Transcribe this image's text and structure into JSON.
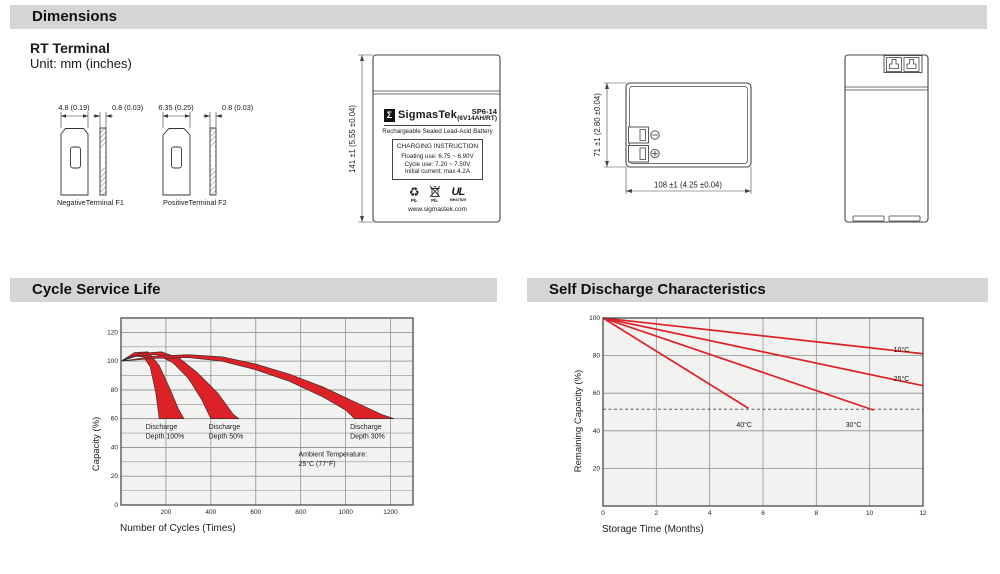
{
  "sections": {
    "dimensions": "Dimensions",
    "cycle_service_life": "Cycle Service Life",
    "self_discharge": "Self Discharge Characteristics"
  },
  "dimensions": {
    "subtitle": "RT Terminal",
    "unit": "Unit: mm (inches)",
    "terminal_f1": {
      "width_dim": "4.8 (0.19)",
      "thickness_dim": "0.8 (0.03)",
      "label": "NegativeTerminal F1"
    },
    "terminal_f2": {
      "width_dim": "6.35 (0.25)",
      "thickness_dim": "0.8 (0.03)",
      "label": "PositiveTerminal F2"
    },
    "front_view": {
      "height_dim": "141 ±1 (5.55 ±0.04)"
    },
    "top_view": {
      "height_dim": "71 ±1 (2.80 ±0.04)",
      "width_dim": "108 ±1 (4.25 ±0.04)"
    },
    "label": {
      "logo_glyph": "Σ",
      "brand": "SigmasTek",
      "model": "SP6-14",
      "model_spec": "(6V14AH/RT)",
      "battery_type": "Rechargeable Sealed Lead-Acid Battery",
      "charging_title": "CHARGING INSTRUCTION",
      "charging_lines": [
        "Floating use: 6.75 ~ 6.90V",
        "Cycle use: 7.20 ~ 7.50V",
        "Initial current: max 4.2A"
      ],
      "recycle_glyph": "♻",
      "pb_recycle": "Pb.",
      "pb_trash": "Pb.",
      "ul_mark": "UL",
      "ul_code": "MH47929",
      "website": "www.sigmastek.com"
    }
  },
  "colors": {
    "accent_red": "#dc2127",
    "band_outline": "#2a2a2a",
    "plot_bg": "#f2f2f0",
    "grid": "#909090",
    "plot_border": "#4a4a4a",
    "text": "#1a1a1a",
    "section_bar": "#d4d5d6"
  },
  "chart_data": [
    {
      "type": "area",
      "name": "cycle_service_life",
      "title": "",
      "xlabel": "Number of Cycles (Times)",
      "ylabel": "Capacity (%)",
      "xlim": [
        0,
        1300
      ],
      "ylim": [
        0,
        130
      ],
      "xticks": [
        200,
        400,
        600,
        800,
        1000,
        1200
      ],
      "yticks": [
        0,
        20,
        40,
        60,
        80,
        100,
        120
      ],
      "y_minor_step": 10,
      "grid": true,
      "bands": [
        {
          "name": "Discharge Depth 100%",
          "upper": [
            [
              0,
              100
            ],
            [
              60,
              106
            ],
            [
              120,
              106.5
            ],
            [
              170,
              97
            ],
            [
              220,
              80
            ],
            [
              255,
              67
            ],
            [
              280,
              60
            ]
          ],
          "lower": [
            [
              0,
              100
            ],
            [
              50,
              103.5
            ],
            [
              100,
              103
            ],
            [
              130,
              96
            ],
            [
              155,
              78
            ],
            [
              170,
              60
            ]
          ]
        },
        {
          "name": "Discharge Depth 50%",
          "upper": [
            [
              0,
              100
            ],
            [
              90,
              105.5
            ],
            [
              180,
              106.5
            ],
            [
              260,
              102
            ],
            [
              340,
              92
            ],
            [
              430,
              78
            ],
            [
              500,
              63
            ],
            [
              525,
              60
            ]
          ],
          "lower": [
            [
              0,
              100
            ],
            [
              80,
              104
            ],
            [
              160,
              104.5
            ],
            [
              230,
              99
            ],
            [
              300,
              88
            ],
            [
              360,
              73
            ],
            [
              400,
              60
            ]
          ]
        },
        {
          "name": "Discharge Depth 30%",
          "upper": [
            [
              0,
              100
            ],
            [
              150,
              103.5
            ],
            [
              300,
              104.5
            ],
            [
              450,
              103
            ],
            [
              600,
              98
            ],
            [
              750,
              91
            ],
            [
              900,
              82
            ],
            [
              1050,
              71
            ],
            [
              1160,
              63
            ],
            [
              1215,
              60
            ]
          ],
          "lower": [
            [
              0,
              100
            ],
            [
              150,
              102
            ],
            [
              300,
              102.5
            ],
            [
              450,
              100
            ],
            [
              600,
              94
            ],
            [
              750,
              86
            ],
            [
              900,
              75
            ],
            [
              1000,
              66
            ],
            [
              1040,
              60
            ]
          ]
        }
      ],
      "annotations": [
        {
          "lines": [
            "Discharge",
            "Depth 100%"
          ],
          "x": 110,
          "y": 57
        },
        {
          "lines": [
            "Discharge",
            "Depth 50%"
          ],
          "x": 390,
          "y": 57
        },
        {
          "lines": [
            "Discharge",
            "Depth 30%"
          ],
          "x": 1020,
          "y": 57
        },
        {
          "lines": [
            "Ambient Temperature:",
            "25°C (77°F)"
          ],
          "x": 790,
          "y": 38
        }
      ]
    },
    {
      "type": "line",
      "name": "self_discharge",
      "title": "",
      "xlabel": "Storage Time (Months)",
      "ylabel": "Remaining Capacity (%)",
      "xlim": [
        0,
        12
      ],
      "ylim": [
        0,
        100
      ],
      "xticks": [
        0,
        2,
        4,
        6,
        8,
        10,
        12
      ],
      "yticks": [
        20,
        40,
        60,
        80,
        100
      ],
      "grid": true,
      "series": [
        {
          "name": "10°C",
          "points": [
            [
              0,
              100
            ],
            [
              12,
              81
            ]
          ],
          "label_at": [
            10.9,
            85.5
          ]
        },
        {
          "name": "25°C",
          "points": [
            [
              0,
              100
            ],
            [
              12,
              64
            ]
          ],
          "label_at": [
            10.9,
            70
          ]
        },
        {
          "name": "30°C",
          "points": [
            [
              0,
              100
            ],
            [
              10.15,
              51
            ]
          ],
          "label_at": [
            9.1,
            45.5
          ]
        },
        {
          "name": "40°C",
          "points": [
            [
              0,
              100
            ],
            [
              5.45,
              52
            ]
          ],
          "label_at": [
            5.0,
            45.5
          ]
        }
      ],
      "dashed_line_y": 51.5
    }
  ]
}
